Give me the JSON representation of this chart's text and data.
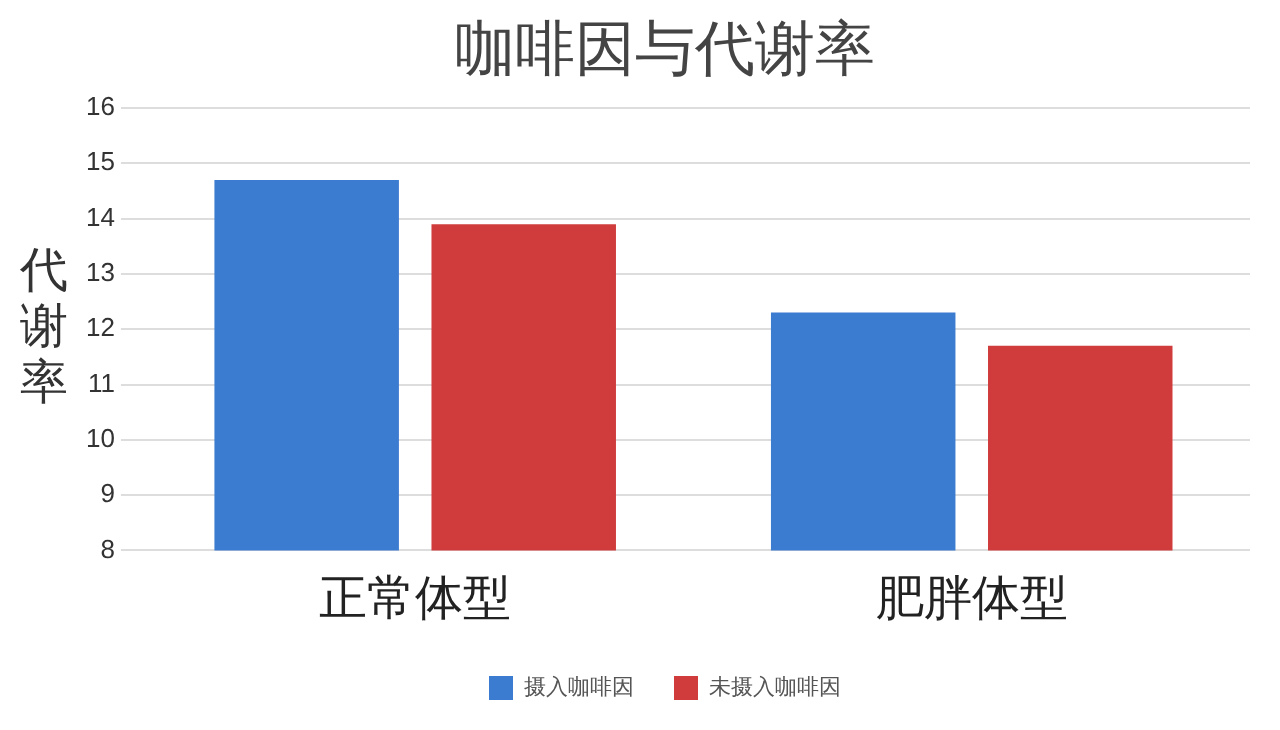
{
  "chart_data": {
    "type": "bar",
    "title": "咖啡因与代谢率",
    "ylabel": "代谢率",
    "categories": [
      "正常体型",
      "肥胖体型"
    ],
    "series": [
      {
        "name": "摄入咖啡因",
        "color": "#3b7bd0",
        "values": [
          14.7,
          12.3
        ]
      },
      {
        "name": "未摄入咖啡因",
        "color": "#d03c3c",
        "values": [
          13.9,
          11.7
        ]
      }
    ],
    "ylim": [
      8,
      16
    ],
    "yticks": [
      8,
      9,
      10,
      11,
      12,
      13,
      14,
      15,
      16
    ],
    "grid": "y",
    "legend": "bottom"
  }
}
